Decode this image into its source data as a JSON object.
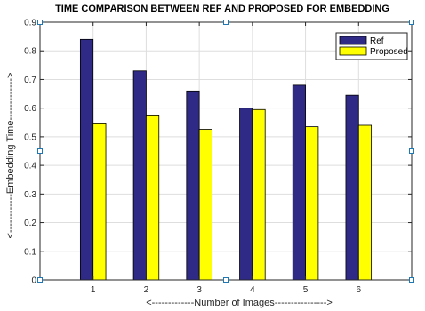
{
  "chart_data": {
    "type": "bar",
    "title": "TIME COMPARISON BETWEEN REF AND PROPOSED FOR EMBEDDING",
    "xlabel": "<-------------Number of Images---------------->",
    "ylabel": "<------------Embedding Time------------->",
    "categories": [
      "1",
      "2",
      "3",
      "4",
      "5",
      "6"
    ],
    "xlim": [
      0,
      7
    ],
    "ylim": [
      0,
      0.9
    ],
    "yticks": [
      "0",
      "0.1",
      "0.2",
      "0.3",
      "0.4",
      "0.5",
      "0.6",
      "0.7",
      "0.8",
      "0.9"
    ],
    "grid": true,
    "legend_position": "top-right",
    "series": [
      {
        "name": "Ref",
        "color": "#2e2a86",
        "values": [
          0.84,
          0.73,
          0.66,
          0.6,
          0.68,
          0.645
        ]
      },
      {
        "name": "Proposed",
        "color": "#ffff00",
        "values": [
          0.548,
          0.576,
          0.526,
          0.595,
          0.535,
          0.54
        ]
      }
    ]
  }
}
